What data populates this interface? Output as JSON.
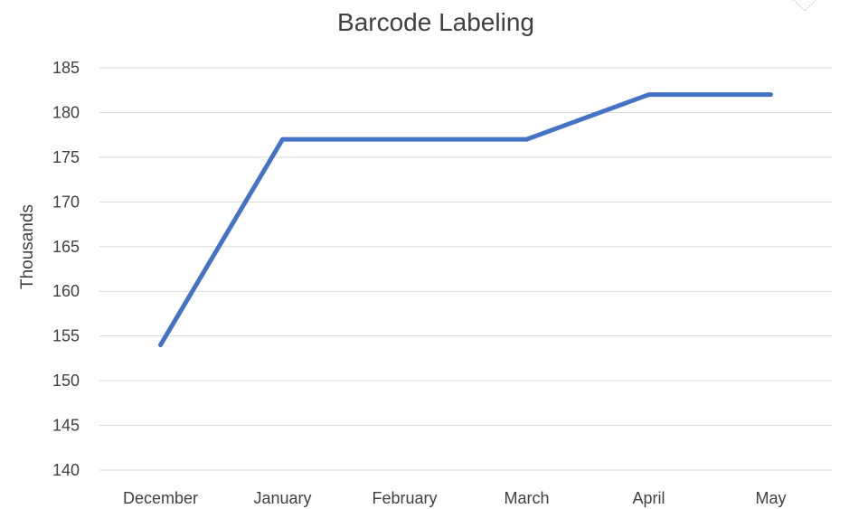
{
  "chart_data": {
    "type": "line",
    "title": "Barcode Labeling",
    "xlabel": "",
    "ylabel": "Thousands",
    "categories": [
      "December",
      "January",
      "February",
      "March",
      "April",
      "May"
    ],
    "series": [
      {
        "values": [
          154,
          177,
          177,
          177,
          182,
          182
        ],
        "color": "#4472c4"
      }
    ],
    "ylim": [
      140,
      185
    ],
    "yticks": [
      140,
      145,
      150,
      155,
      160,
      165,
      170,
      175,
      180,
      185
    ],
    "grid": true,
    "legend": "none"
  }
}
